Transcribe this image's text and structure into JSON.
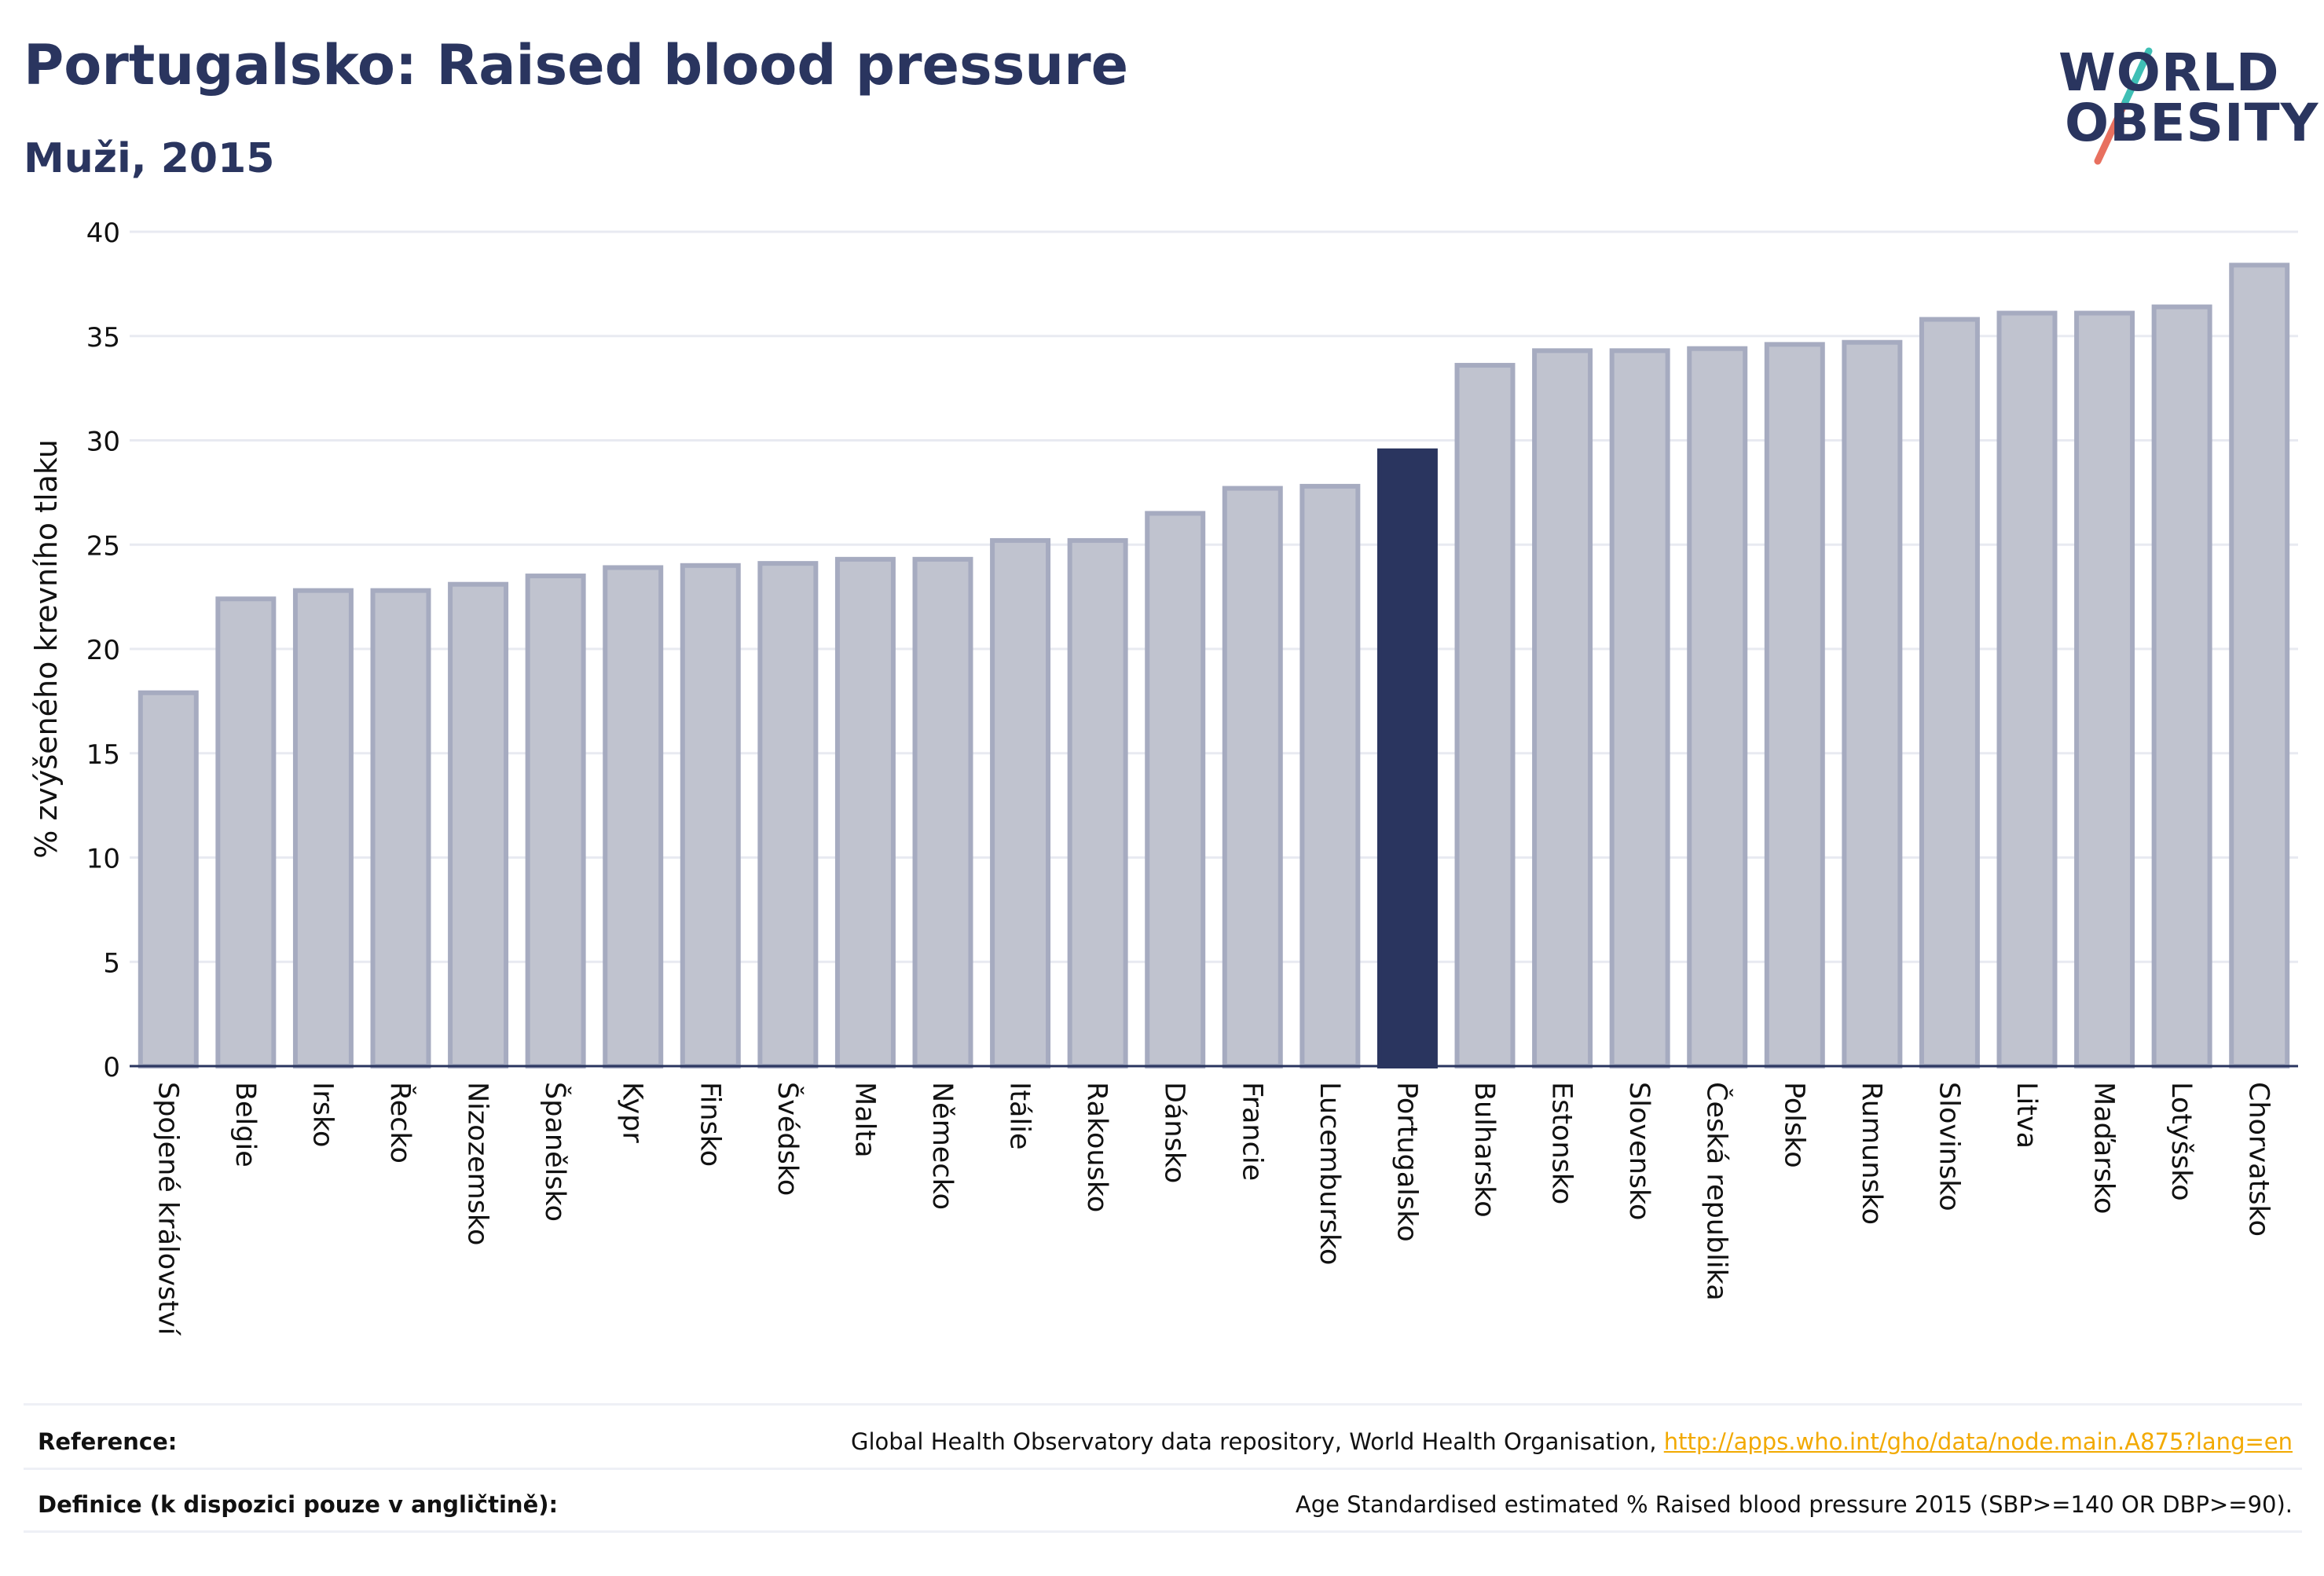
{
  "header": {
    "title": "Portugalsko: Raised blood pressure",
    "subtitle": "Muži, 2015"
  },
  "logo": {
    "line1": "WORLD",
    "line2": "OBESITY"
  },
  "chart_data": {
    "type": "bar",
    "ylabel": "% zvýšeného krevního tlaku",
    "xlabel": "",
    "ylim": [
      0,
      40
    ],
    "yticks": [
      0,
      5,
      10,
      15,
      20,
      25,
      30,
      35,
      40
    ],
    "grid": true,
    "highlight": "Portugalsko",
    "colors": {
      "bar": "#c0c3cf",
      "bar_edge": "#a6abc0",
      "highlight": "#2a355f",
      "axis": "#2a355f",
      "grid": "#e8eaf1"
    },
    "categories": [
      "Spojené království",
      "Belgie",
      "Irsko",
      "Řecko",
      "Nizozemsko",
      "Španělsko",
      "Kypr",
      "Finsko",
      "Švédsko",
      "Malta",
      "Německo",
      "Itálie",
      "Rakousko",
      "Dánsko",
      "Francie",
      "Lucembursko",
      "Portugalsko",
      "Bulharsko",
      "Estonsko",
      "Slovensko",
      "Česká republika",
      "Polsko",
      "Rumunsko",
      "Slovinsko",
      "Litva",
      "Maďarsko",
      "Lotyšsko",
      "Chorvatsko"
    ],
    "values": [
      17.9,
      22.4,
      22.8,
      22.8,
      23.1,
      23.5,
      23.9,
      24.0,
      24.1,
      24.3,
      24.3,
      25.2,
      25.2,
      26.5,
      27.7,
      27.8,
      29.5,
      33.6,
      34.3,
      34.3,
      34.4,
      34.6,
      34.7,
      35.8,
      36.1,
      36.1,
      36.4,
      38.4
    ]
  },
  "footer": {
    "reference_label": "Reference:",
    "reference_text": "Global Health Observatory data repository, World Health Organisation,",
    "reference_link": "http://apps.who.int/gho/data/node.main.A875?lang=en",
    "definition_label": "Definice (k dispozici pouze v angličtině):",
    "definition_text": "Age Standardised estimated % Raised blood pressure 2015 (SBP>=140 OR DBP>=90)."
  }
}
